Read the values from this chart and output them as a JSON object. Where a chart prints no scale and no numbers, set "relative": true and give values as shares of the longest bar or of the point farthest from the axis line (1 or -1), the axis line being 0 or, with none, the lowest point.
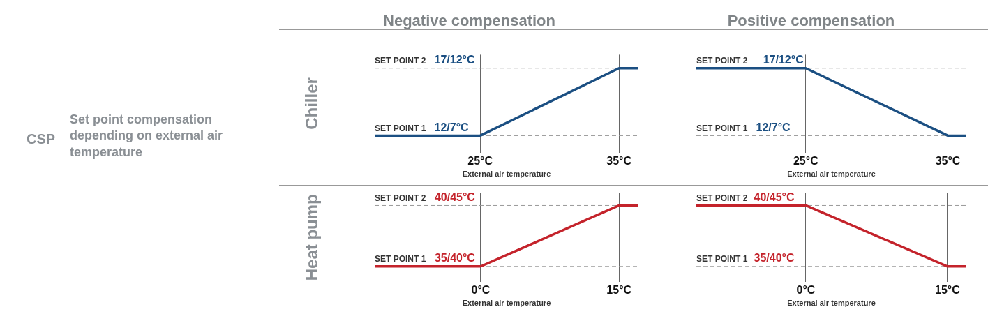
{
  "chart_data": [
    {
      "type": "other",
      "title": "CSP",
      "subtitle": "Set point compensation depending on external air temperature"
    },
    {
      "type": "line",
      "title": "Negative compensation",
      "ylabel": "Chiller",
      "xlabel": "External air temperature",
      "relative": true,
      "x": [
        17.4,
        25,
        35,
        36.4
      ],
      "xlim": [
        17.4,
        36.4
      ],
      "xticks": [
        {
          "value": 25,
          "label": "25°C"
        },
        {
          "value": 35,
          "label": "35°C"
        }
      ],
      "tick_labels": "x",
      "grid": "x",
      "legend": false,
      "marker": "none",
      "series": [
        {
          "color": "#1b4f82",
          "values": [
            0,
            0,
            1,
            1
          ]
        }
      ],
      "ref_lines": [
        {
          "axis": "y",
          "value": 0,
          "label": "SET POINT 1",
          "color": "#999999",
          "line_style": "dashed"
        },
        {
          "axis": "y",
          "value": 1,
          "label": "SET POINT 2",
          "color": "#999999",
          "line_style": "dashed"
        }
      ],
      "annotations": [
        {
          "text": "12/7°C",
          "x": 21.7,
          "y": 0
        },
        {
          "text": "17/12°C",
          "x": 21.7,
          "y": 1
        }
      ]
    },
    {
      "type": "line",
      "title": "Positive compensation",
      "xlabel": "External air temperature",
      "relative": true,
      "x": [
        17.3,
        25,
        35,
        36.3
      ],
      "xlim": [
        17.3,
        36.3
      ],
      "xticks": [
        {
          "value": 25,
          "label": "25°C"
        },
        {
          "value": 35,
          "label": "35°C"
        }
      ],
      "tick_labels": "x",
      "grid": "x",
      "legend": false,
      "marker": "none",
      "series": [
        {
          "color": "#1b4f82",
          "values": [
            1,
            1,
            0,
            0
          ]
        }
      ],
      "ref_lines": [
        {
          "axis": "y",
          "value": 0,
          "label": "SET POINT 1",
          "color": "#999999",
          "line_style": "dashed"
        },
        {
          "axis": "y",
          "value": 1,
          "label": "SET POINT 2",
          "color": "#999999",
          "line_style": "dashed"
        }
      ],
      "annotations": [
        {
          "text": "12/7°C",
          "x": 21.5,
          "y": 0
        },
        {
          "text": "17/12°C",
          "x": 22.0,
          "y": 1
        }
      ]
    },
    {
      "type": "line",
      "ylabel": "Heat pump",
      "xlabel": "External air temperature",
      "relative": true,
      "x": [
        -11.5,
        0,
        15,
        17.1
      ],
      "xlim": [
        -11.5,
        17.1
      ],
      "xticks": [
        {
          "value": 0,
          "label": "0°C"
        },
        {
          "value": 15,
          "label": "15°C"
        }
      ],
      "tick_labels": "x",
      "grid": "x",
      "legend": false,
      "marker": "none",
      "series": [
        {
          "color": "#c4232b",
          "values": [
            0,
            0,
            1,
            1
          ]
        }
      ],
      "ref_lines": [
        {
          "axis": "y",
          "value": 0,
          "label": "SET POINT 1",
          "color": "#999999",
          "line_style": "dashed"
        },
        {
          "axis": "y",
          "value": 1,
          "label": "SET POINT 2",
          "color": "#999999",
          "line_style": "dashed"
        }
      ],
      "annotations": [
        {
          "text": "35/40°C",
          "x": -5.0,
          "y": 0
        },
        {
          "text": "40/45°C",
          "x": -5.0,
          "y": 1
        }
      ]
    },
    {
      "type": "line",
      "xlabel": "External air temperature",
      "relative": true,
      "x": [
        -11.6,
        0,
        15,
        17.0
      ],
      "xlim": [
        -11.6,
        17.0
      ],
      "xticks": [
        {
          "value": 0,
          "label": "0°C"
        },
        {
          "value": 15,
          "label": "15°C"
        }
      ],
      "tick_labels": "x",
      "grid": "x",
      "legend": false,
      "marker": "none",
      "series": [
        {
          "color": "#c4232b",
          "values": [
            1,
            1,
            0,
            0
          ]
        }
      ],
      "ref_lines": [
        {
          "axis": "y",
          "value": 0,
          "label": "SET POINT 1",
          "color": "#999999",
          "line_style": "dashed"
        },
        {
          "axis": "y",
          "value": 1,
          "label": "SET POINT 2",
          "color": "#999999",
          "line_style": "dashed"
        }
      ],
      "annotations": [
        {
          "text": "35/40°C",
          "x": -5.5,
          "y": 0
        },
        {
          "text": "40/45°C",
          "x": -5.5,
          "y": 1
        }
      ]
    }
  ]
}
